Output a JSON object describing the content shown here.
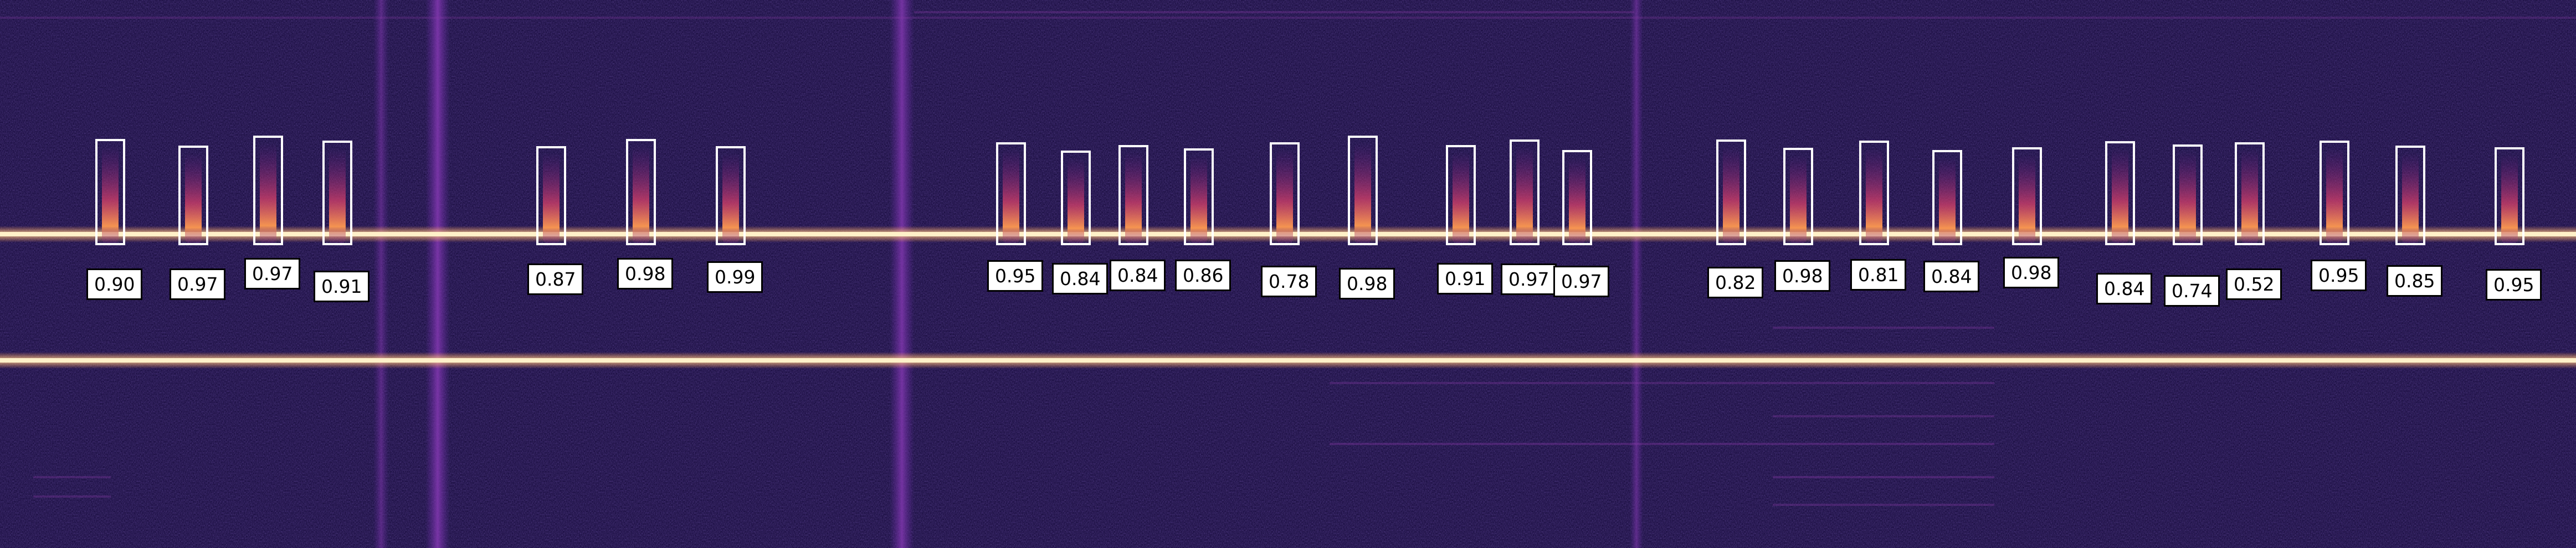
{
  "colors": {
    "background": "#1a0f3d",
    "noise_dark": "#120a2e",
    "noise_light": "#2e1868",
    "tone": "#ff9a4a",
    "tone_core": "#fff2c8",
    "vertical_band": "#6a2aa8",
    "box_border": "#ffffff",
    "label_bg": "#ffffff",
    "label_border": "#000000",
    "label_text": "#000000"
  },
  "detections": [
    {
      "label": "0.90"
    },
    {
      "label": "0.97"
    },
    {
      "label": "0.97"
    },
    {
      "label": "0.91"
    },
    {
      "label": "0.87"
    },
    {
      "label": "0.98"
    },
    {
      "label": "0.99"
    },
    {
      "label": "0.95"
    },
    {
      "label": "0.84"
    },
    {
      "label": "0.84"
    },
    {
      "label": "0.86"
    },
    {
      "label": "0.78"
    },
    {
      "label": "0.98"
    },
    {
      "label": "0.91"
    },
    {
      "label": "0.97"
    },
    {
      "label": "0.97"
    },
    {
      "label": "0.82"
    },
    {
      "label": "0.98"
    },
    {
      "label": "0.81"
    },
    {
      "label": "0.84"
    },
    {
      "label": "0.98"
    },
    {
      "label": "0.84"
    },
    {
      "label": "0.74"
    },
    {
      "label": "0.52"
    },
    {
      "label": "0.95"
    },
    {
      "label": "0.85"
    },
    {
      "label": "0.95"
    }
  ]
}
